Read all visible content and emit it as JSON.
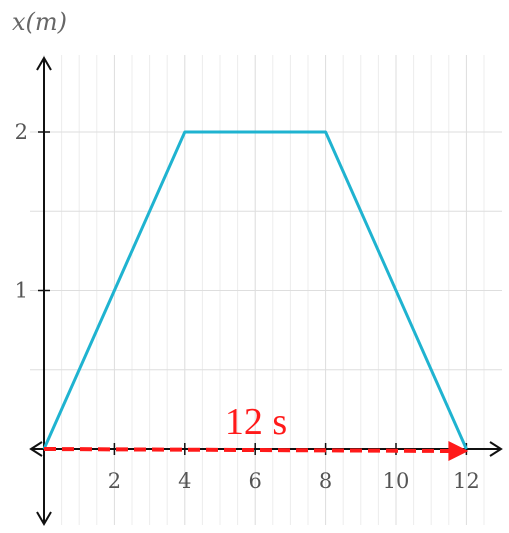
{
  "chart_data": {
    "type": "line",
    "xlabel": "",
    "ylabel": "x(m)",
    "xlim": [
      -0.5,
      12.6
    ],
    "ylim": [
      -0.5,
      2.5
    ],
    "x_ticks": [
      2,
      4,
      6,
      8,
      10,
      12
    ],
    "y_ticks": [
      1,
      2
    ],
    "minor_x_step": 0.5,
    "minor_y_step": 0.5,
    "grid": true,
    "series": [
      {
        "x": [
          0,
          4,
          8,
          12
        ],
        "y": [
          0,
          2,
          2,
          0
        ],
        "color": "#1fb3d0"
      }
    ],
    "annotation": {
      "text": "12 s",
      "arrow_from": 0,
      "arrow_to": 12,
      "color": "#ff1a1a"
    }
  }
}
